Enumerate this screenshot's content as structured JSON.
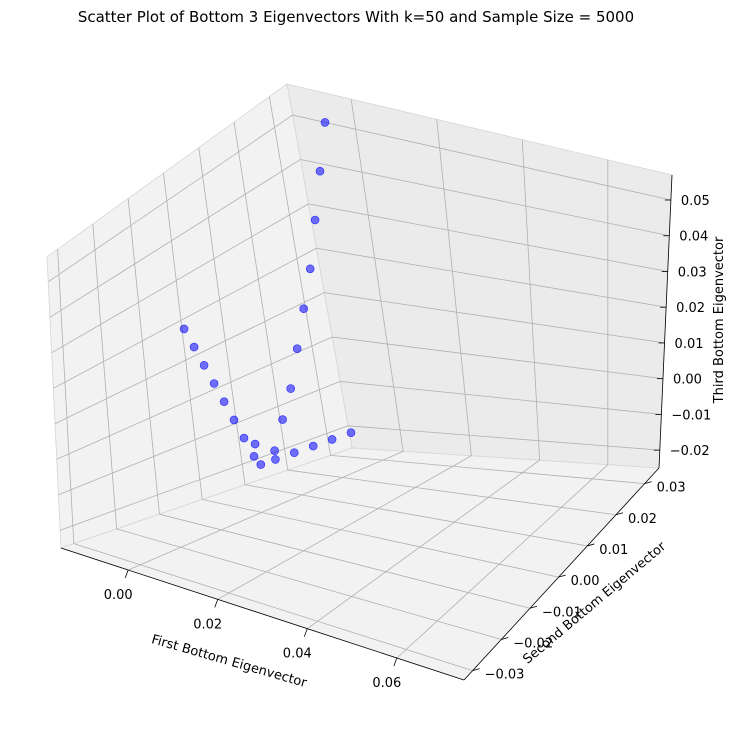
{
  "chart_data": {
    "type": "scatter",
    "title": "Scatter Plot of Bottom 3 Eigenvectors With k=50 and Sample Size = 5000",
    "xlabel": "First Bottom Eigenvector",
    "ylabel": "Second Bottom Eigenvector",
    "zlabel": "Third Bottom Eigenvector",
    "xlim": [
      -0.015,
      0.075
    ],
    "ylim": [
      -0.033,
      0.035
    ],
    "zlim": [
      -0.025,
      0.057
    ],
    "xticks": [
      "0.00",
      "0.02",
      "0.04",
      "0.06"
    ],
    "yticks": [
      "−0.03",
      "−0.02",
      "−0.01",
      "0.00",
      "0.01",
      "0.02",
      "0.03"
    ],
    "zticks": [
      "−0.02",
      "−0.01",
      "0.00",
      "0.01",
      "0.02",
      "0.03",
      "0.04",
      "0.05"
    ],
    "color": "#0000ff",
    "grid": true,
    "series": [
      {
        "points": [
          [
            0.004,
            -0.001,
            -0.014
          ],
          [
            0.002,
            -0.001,
            -0.01
          ],
          [
            0.0,
            -0.001,
            -0.006
          ],
          [
            -0.002,
            -0.001,
            -0.002
          ],
          [
            -0.004,
            -0.001,
            0.002
          ],
          [
            -0.006,
            -0.001,
            0.006
          ],
          [
            -0.008,
            -0.001,
            0.01
          ],
          [
            -0.01,
            -0.001,
            0.014
          ],
          [
            0.005,
            0.003,
            -0.014
          ],
          [
            0.005,
            0.006,
            -0.008
          ],
          [
            0.005,
            0.009,
            -0.002
          ],
          [
            0.005,
            0.012,
            0.006
          ],
          [
            0.005,
            0.015,
            0.014
          ],
          [
            0.005,
            0.018,
            0.022
          ],
          [
            0.005,
            0.021,
            0.032
          ],
          [
            0.005,
            0.024,
            0.042
          ],
          [
            0.005,
            0.027,
            0.052
          ],
          [
            0.009,
            -0.004,
            -0.01
          ],
          [
            0.015,
            -0.008,
            -0.013
          ],
          [
            0.025,
            -0.012,
            -0.01
          ],
          [
            0.035,
            -0.015,
            -0.007
          ],
          [
            0.045,
            -0.018,
            -0.004
          ],
          [
            0.055,
            -0.021,
            -0.001
          ],
          [
            0.065,
            -0.024,
            0.002
          ]
        ]
      }
    ]
  }
}
